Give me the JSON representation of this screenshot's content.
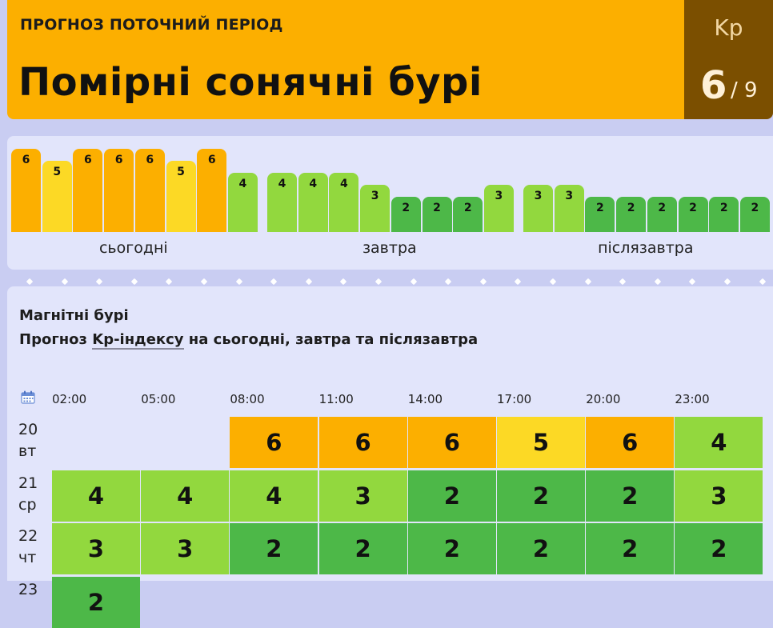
{
  "header": {
    "period_label": "ПРОГНОЗ ПОТОЧНИЙ ПЕРІОД",
    "title": "Помірні сонячні бурі",
    "kp_label": "Kp",
    "kp_value": "6",
    "kp_max": "/ 9"
  },
  "colors": {
    "6": "#fcaf00",
    "5": "#fcd925",
    "4": "#92d83e",
    "3": "#92d83e",
    "2": "#4db848"
  },
  "strip": {
    "days": [
      {
        "label": "сьогодні",
        "values": [
          6,
          5,
          6,
          6,
          6,
          5,
          6,
          4
        ]
      },
      {
        "label": "завтра",
        "values": [
          4,
          4,
          4,
          3,
          2,
          2,
          2,
          3
        ]
      },
      {
        "label": "післязавтра",
        "values": [
          3,
          3,
          2,
          2,
          2,
          2,
          2,
          2
        ]
      }
    ]
  },
  "section": {
    "title": "Магнітні бурі",
    "subtitle_prefix": "Прогноз ",
    "subtitle_link": "Kp-індексу",
    "subtitle_suffix": " на сьогодні, завтра та післязавтра",
    "calendar_icon": "calendar-icon",
    "times": [
      "02:00",
      "05:00",
      "08:00",
      "11:00",
      "14:00",
      "17:00",
      "20:00",
      "23:00"
    ],
    "rows": [
      {
        "day": "20",
        "weekday": "вт",
        "values": [
          null,
          null,
          6,
          6,
          6,
          5,
          6,
          4
        ]
      },
      {
        "day": "21",
        "weekday": "ср",
        "values": [
          4,
          4,
          4,
          3,
          2,
          2,
          2,
          3
        ]
      },
      {
        "day": "22",
        "weekday": "чт",
        "values": [
          3,
          3,
          2,
          2,
          2,
          2,
          2,
          2
        ]
      },
      {
        "day": "23",
        "weekday": "",
        "values": [
          2
        ]
      }
    ]
  }
}
